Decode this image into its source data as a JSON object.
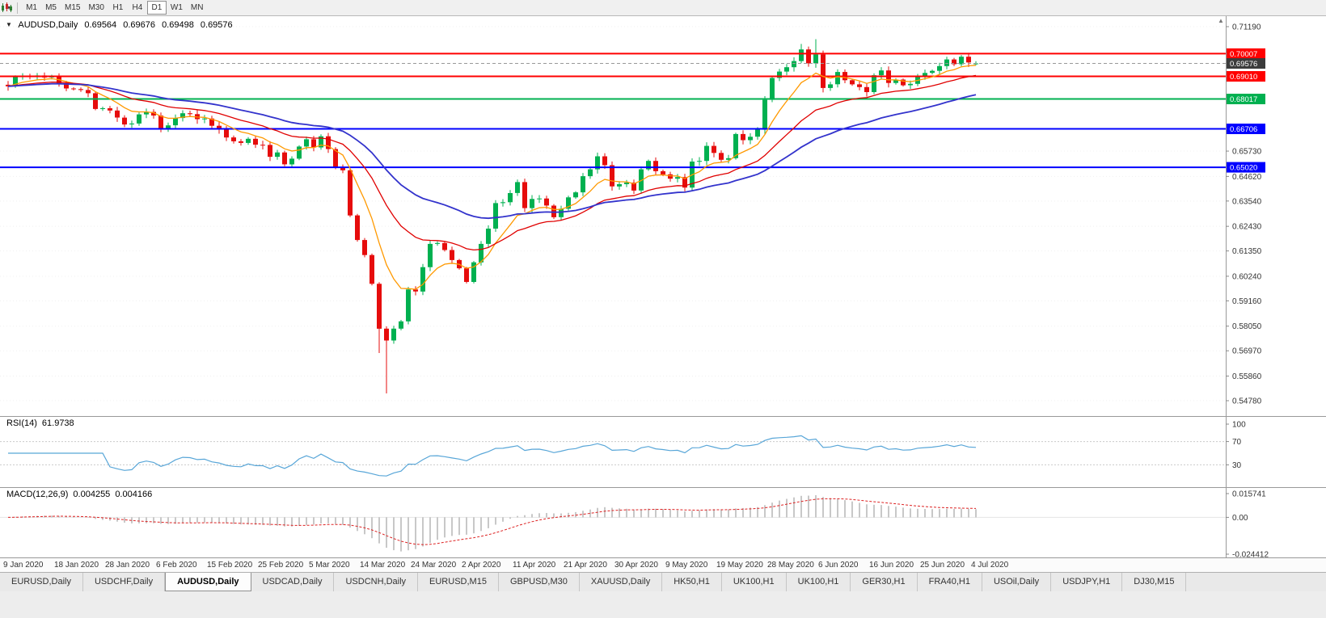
{
  "toolbar": {
    "timeframes": [
      "M1",
      "M5",
      "M15",
      "M30",
      "H1",
      "H4",
      "D1",
      "W1",
      "MN"
    ],
    "active_timeframe": "D1"
  },
  "chart_header": {
    "symbol": "AUDUSD,Daily",
    "open": "0.69564",
    "high": "0.69676",
    "low": "0.69498",
    "close": "0.69576"
  },
  "indicators": {
    "rsi": {
      "label": "RSI(14)",
      "value": "61.9738",
      "scale_labels": [
        "100",
        "70",
        "30"
      ]
    },
    "macd": {
      "label": "MACD(12,26,9)",
      "value1": "0.004255",
      "value2": "0.004166",
      "scale": [
        "0.015741",
        "0.00",
        "-0.024412"
      ]
    }
  },
  "tabs": {
    "active_index": 2,
    "items": [
      "EURUSD,Daily",
      "USDCHF,Daily",
      "AUDUSD,Daily",
      "USDCAD,Daily",
      "USDCNH,Daily",
      "EURUSD,M15",
      "GBPUSD,M30",
      "XAUUSD,Daily",
      "HK50,H1",
      "UK100,H1",
      "UK100,H1",
      "GER30,H1",
      "FRA40,H1",
      "USOil,Daily",
      "USDJPY,H1",
      "DJ30,M15"
    ]
  },
  "chart_data": {
    "type": "candlestick",
    "symbol": "AUDUSD",
    "timeframe": "Daily",
    "price_range": {
      "top": 0.7119,
      "bottom": 0.5478
    },
    "y_ticks": [
      "0.71190",
      "0.65730",
      "0.64620",
      "0.63540",
      "0.62430",
      "0.61350",
      "0.60240",
      "0.59160",
      "0.58050",
      "0.56970",
      "0.55860",
      "0.54780"
    ],
    "x_dates": [
      "9 Jan 2020",
      "18 Jan 2020",
      "28 Jan 2020",
      "6 Feb 2020",
      "15 Feb 2020",
      "25 Feb 2020",
      "5 Mar 2020",
      "14 Mar 2020",
      "24 Mar 2020",
      "2 Apr 2020",
      "11 Apr 2020",
      "21 Apr 2020",
      "30 Apr 2020",
      "9 May 2020",
      "19 May 2020",
      "28 May 2020",
      "6 Jun 2020",
      "16 Jun 2020",
      "25 Jun 2020",
      "4 Jul 2020"
    ],
    "candles": {
      "first_open": 0.6864,
      "closes": [
        0.6857,
        0.69,
        0.6903,
        0.6899,
        0.6905,
        0.6896,
        0.6901,
        0.6871,
        0.6848,
        0.6845,
        0.6841,
        0.6827,
        0.6758,
        0.6761,
        0.6751,
        0.672,
        0.669,
        0.6694,
        0.6734,
        0.6745,
        0.6729,
        0.6671,
        0.6686,
        0.6718,
        0.6739,
        0.6735,
        0.6713,
        0.6716,
        0.6684,
        0.6669,
        0.6633,
        0.6616,
        0.6609,
        0.6627,
        0.6601,
        0.66,
        0.6548,
        0.6567,
        0.6515,
        0.654,
        0.6593,
        0.6625,
        0.6589,
        0.6638,
        0.6582,
        0.6503,
        0.6489,
        0.6291,
        0.6183,
        0.6117,
        0.5991,
        0.5794,
        0.5742,
        0.5794,
        0.5826,
        0.5966,
        0.5957,
        0.6064,
        0.6166,
        0.617,
        0.6139,
        0.6095,
        0.6059,
        0.5999,
        0.6085,
        0.6166,
        0.6233,
        0.6345,
        0.6349,
        0.6389,
        0.6437,
        0.6323,
        0.6363,
        0.6365,
        0.6334,
        0.6283,
        0.632,
        0.637,
        0.6392,
        0.6463,
        0.6493,
        0.655,
        0.6511,
        0.6418,
        0.6428,
        0.6435,
        0.64,
        0.6493,
        0.653,
        0.6485,
        0.6471,
        0.6452,
        0.6459,
        0.6413,
        0.6527,
        0.653,
        0.6596,
        0.6565,
        0.6535,
        0.6542,
        0.6648,
        0.6621,
        0.6636,
        0.6667,
        0.6798,
        0.6894,
        0.6922,
        0.6941,
        0.6968,
        0.7019,
        0.6958,
        0.6997,
        0.685,
        0.6866,
        0.692,
        0.6884,
        0.6866,
        0.6854,
        0.6832,
        0.6906,
        0.6927,
        0.6872,
        0.6887,
        0.6862,
        0.6868,
        0.6903,
        0.6916,
        0.6925,
        0.6946,
        0.6975,
        0.6954,
        0.6987,
        0.6962,
        0.6958
      ]
    },
    "wick_low_overrides": {
      "51": 0.5687,
      "52": 0.551
    },
    "wick_high_overrides": {
      "109": 0.7043,
      "111": 0.7064
    },
    "last_candle": {
      "open": 0.69564,
      "high": 0.69676,
      "low": 0.69498,
      "close": 0.69576
    },
    "moving_averages": [
      {
        "name": "fast-ma",
        "period": 8,
        "color": "#ff9900",
        "width": 1.3
      },
      {
        "name": "medium-ma",
        "period": 21,
        "color": "#e00000",
        "width": 1.3
      },
      {
        "name": "slow-ma",
        "period": 40,
        "color": "#3333cc",
        "width": 1.8
      }
    ],
    "horizontal_lines": [
      {
        "price": 0.70007,
        "label": "0.70007",
        "color": "#ff0000"
      },
      {
        "price": 0.6901,
        "label": "0.69010",
        "color": "#ff0000"
      },
      {
        "price": 0.68017,
        "label": "0.68017",
        "color": "#00b050"
      },
      {
        "price": 0.66706,
        "label": "0.66706",
        "color": "#0000ff"
      },
      {
        "price": 0.6502,
        "label": "0.65020",
        "color": "#0000ff"
      }
    ],
    "current_price": {
      "value": 0.69576,
      "label": "0.69576"
    },
    "rsi": {
      "period": 14,
      "current": 61.9738,
      "levels": [
        70,
        30
      ]
    },
    "macd": {
      "fast": 12,
      "slow": 26,
      "signal": 9,
      "current_macd": 0.004255,
      "current_signal": 0.004166,
      "scale_max": 0.015741,
      "scale_min": -0.024412
    }
  }
}
